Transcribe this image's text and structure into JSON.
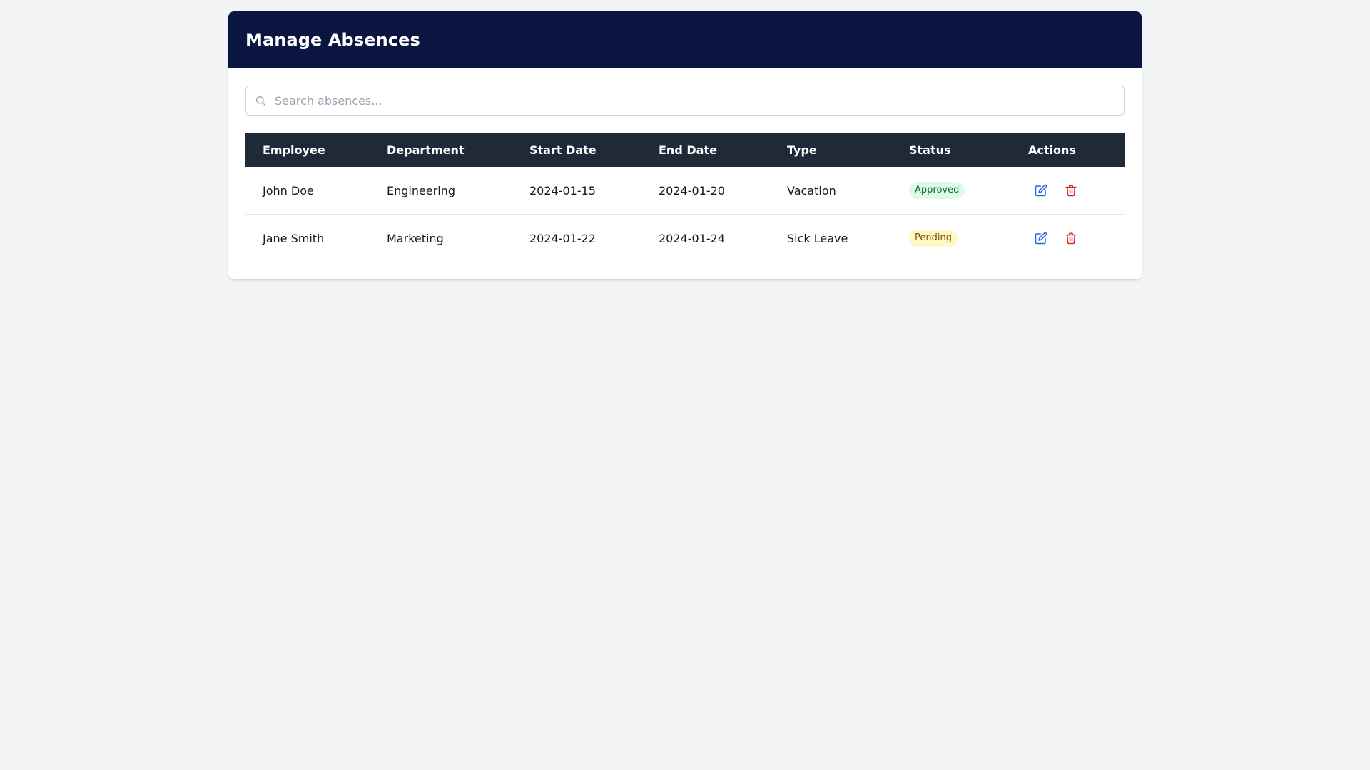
{
  "header": {
    "title": "Manage Absences"
  },
  "search": {
    "placeholder": "Search absences...",
    "value": ""
  },
  "table": {
    "columns": [
      "Employee",
      "Department",
      "Start Date",
      "End Date",
      "Type",
      "Status",
      "Actions"
    ],
    "rows": [
      {
        "employee": "John Doe",
        "department": "Engineering",
        "start_date": "2024-01-15",
        "end_date": "2024-01-20",
        "type": "Vacation",
        "status": "Approved",
        "status_color": "#166534",
        "status_bg": "#dcfce7"
      },
      {
        "employee": "Jane Smith",
        "department": "Marketing",
        "start_date": "2024-01-22",
        "end_date": "2024-01-24",
        "type": "Sick Leave",
        "status": "Pending",
        "status_color": "#854d0e",
        "status_bg": "#fef9c3"
      }
    ],
    "row_actions": [
      "edit-icon",
      "trash-icon"
    ]
  },
  "colors": {
    "header_bg": "#0a1640",
    "table_header_bg": "#1f2937",
    "edit_icon": "#2563eb",
    "delete_icon": "#dc2626"
  }
}
